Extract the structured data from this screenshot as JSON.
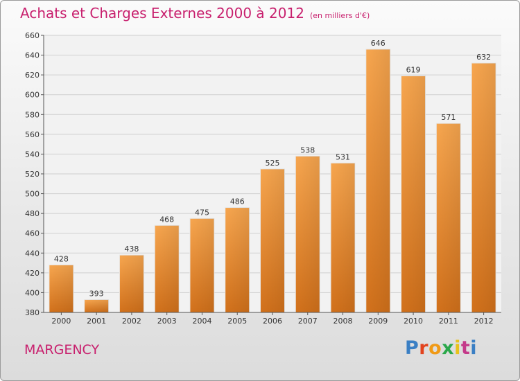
{
  "header": {
    "title": "Achats et Charges Externes 2000 à 2012",
    "subtitle": "(en milliers d'€)"
  },
  "footer": {
    "city": "MARGENCY",
    "logo": "Proxiti"
  },
  "colors": {
    "accent": "#c8206e",
    "bar_light": "#f7a64f",
    "bar_dark": "#d2711b"
  },
  "chart_data": {
    "type": "bar",
    "categories": [
      "2000",
      "2001",
      "2002",
      "2003",
      "2004",
      "2005",
      "2006",
      "2007",
      "2008",
      "2009",
      "2010",
      "2011",
      "2012"
    ],
    "values": [
      428,
      393,
      438,
      468,
      475,
      486,
      525,
      538,
      531,
      646,
      619,
      571,
      632
    ],
    "title": "Achats et Charges Externes 2000 à 2012",
    "subtitle": "(en milliers d'€)",
    "xlabel": "",
    "ylabel": "",
    "ylim": [
      380,
      660
    ],
    "yticks": [
      380,
      400,
      420,
      440,
      460,
      480,
      500,
      520,
      540,
      560,
      580,
      600,
      620,
      640,
      660
    ],
    "grid": true,
    "data_labels": true
  }
}
